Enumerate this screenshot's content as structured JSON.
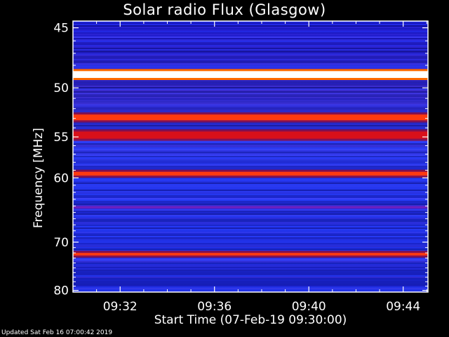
{
  "chart_data": {
    "type": "heatmap",
    "title": "Solar radio Flux (Glasgow)",
    "xlabel": "Start Time (07-Feb-19 09:30:00)",
    "ylabel": "Frequency [MHz]",
    "x_ticks": [
      "09:32",
      "09:36",
      "09:40",
      "09:44"
    ],
    "x_tick_minutes": [
      2,
      6,
      10,
      14
    ],
    "xlim_minutes": [
      0,
      15.05
    ],
    "y_ticks": [
      45,
      50,
      55,
      60,
      70,
      80
    ],
    "ylim": [
      44.5,
      80.4
    ],
    "y_scale": "reciprocal",
    "colormap": [
      "#000000",
      "#1a1aa0",
      "#2233ff",
      "#5a2bd0",
      "#a0106a",
      "#e0201a",
      "#ff6a00",
      "#ffffff"
    ],
    "bands": [
      {
        "f_min": 48.5,
        "f_max": 49.1,
        "level": 1.0
      },
      {
        "f_min": 52.6,
        "f_max": 53.2,
        "level": 0.8
      },
      {
        "f_min": 54.4,
        "f_max": 55.2,
        "level": 0.75
      },
      {
        "f_min": 59.2,
        "f_max": 59.7,
        "level": 0.85
      },
      {
        "f_min": 64.0,
        "f_max": 64.4,
        "level": 0.45
      },
      {
        "f_min": 72.0,
        "f_max": 72.5,
        "level": 0.9
      }
    ]
  },
  "footer": "Updated Sat Feb 16 07:00:42 2019"
}
